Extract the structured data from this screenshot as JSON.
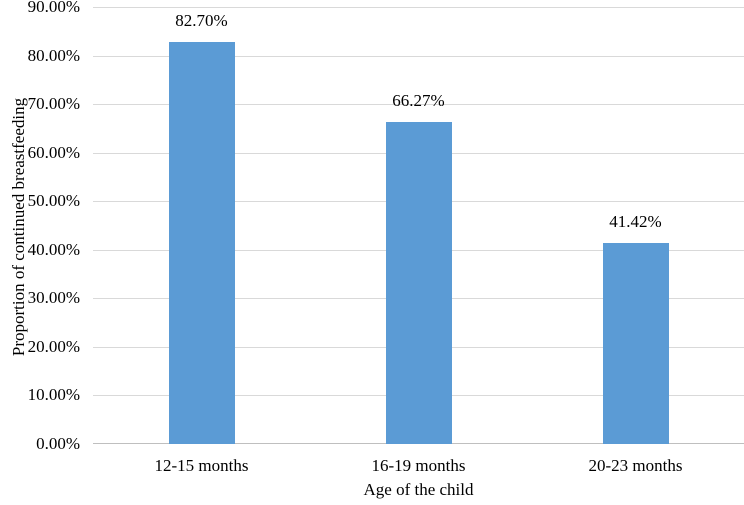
{
  "chart_data": {
    "type": "bar",
    "title": "",
    "xlabel": "Age of the child",
    "ylabel": "Proportion of continued breastfeeding",
    "categories": [
      "12-15 months",
      "16-19 months",
      "20-23 months"
    ],
    "values": [
      82.7,
      66.27,
      41.42
    ],
    "value_labels": [
      "82.70%",
      "66.27%",
      "41.42%"
    ],
    "ylim": [
      0,
      90
    ],
    "grid": true,
    "legend_position": "none",
    "yticks": [
      {
        "value": 90,
        "label": "90.00%"
      },
      {
        "value": 80,
        "label": "80.00%"
      },
      {
        "value": 70,
        "label": "70.00%"
      },
      {
        "value": 60,
        "label": "60.00%"
      },
      {
        "value": 50,
        "label": "50.00%"
      },
      {
        "value": 40,
        "label": "40.00%"
      },
      {
        "value": 30,
        "label": "30.00%"
      },
      {
        "value": 20,
        "label": "20.00%"
      },
      {
        "value": 10,
        "label": "10.00%"
      },
      {
        "value": 0,
        "label": "0.00%"
      }
    ],
    "colors": {
      "bar": "#5b9bd5",
      "gridline": "#d9d9d9",
      "axis_line": "#bfbfbf",
      "text": "#000000",
      "background": "#ffffff"
    }
  }
}
